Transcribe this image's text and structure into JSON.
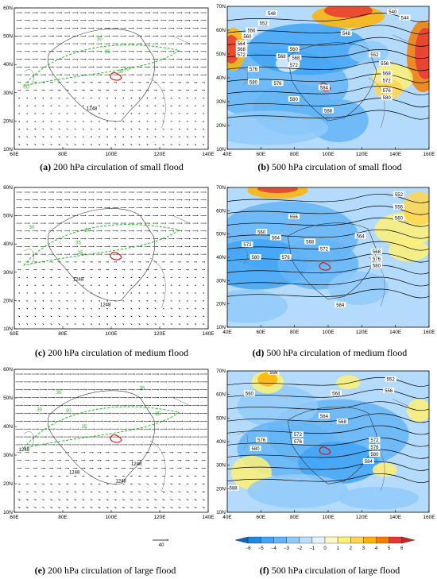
{
  "panels": [
    {
      "id": "a",
      "label": "(a)",
      "caption": "200 hPa circulation of small flood",
      "lats": [
        "60N",
        "50N",
        "40N",
        "30N",
        "20N",
        "10N"
      ],
      "lons": [
        "60E",
        "80E",
        "100E",
        "120E",
        "140E"
      ],
      "contours": [
        "30",
        "35",
        "35",
        "30",
        "30",
        "1248"
      ]
    },
    {
      "id": "b",
      "label": "(b)",
      "caption": "500 hPa circulation of small flood",
      "lats": [
        "70N",
        "60N",
        "50N",
        "40N",
        "30N",
        "20N",
        "10N"
      ],
      "lons": [
        "40E",
        "60E",
        "80E",
        "100E",
        "120E",
        "140E",
        "160E"
      ],
      "contours": [
        "548",
        "552",
        "556",
        "560",
        "564",
        "568",
        "572",
        "576",
        "580",
        "568",
        "572",
        "576",
        "580",
        "584",
        "588",
        "560",
        "568",
        "540",
        "544",
        "548",
        "552",
        "556",
        "568",
        "572",
        "576",
        "580"
      ]
    },
    {
      "id": "c",
      "label": "(c)",
      "caption": "200 hPa circulation of medium flood",
      "lats": [
        "60N",
        "50N",
        "40N",
        "30N",
        "20N",
        "10N"
      ],
      "lons": [
        "60E",
        "80E",
        "100E",
        "120E",
        "140E"
      ],
      "contours": [
        "30",
        "35",
        "35",
        "30",
        "1248",
        "1248"
      ]
    },
    {
      "id": "d",
      "label": "(d)",
      "caption": "500 hPa circulation of medium flood",
      "lats": [
        "70N",
        "60N",
        "50N",
        "40N",
        "30N",
        "20N",
        "10N"
      ],
      "lons": [
        "40E",
        "60E",
        "80E",
        "100E",
        "120E",
        "140E",
        "160E"
      ],
      "contours": [
        "552",
        "556",
        "560",
        "556",
        "560",
        "564",
        "572",
        "580",
        "576",
        "568",
        "572",
        "564",
        "568",
        "576",
        "580",
        "584"
      ]
    },
    {
      "id": "e",
      "label": "(e)",
      "caption": "200 hPa circulation of large flood",
      "lats": [
        "60N",
        "50N",
        "40N",
        "30N",
        "20N",
        "10N"
      ],
      "lons": [
        "60E",
        "80E",
        "100E",
        "120E",
        "140E"
      ],
      "contours": [
        "30",
        "35",
        "30",
        "35",
        "35",
        "30",
        "1248",
        "1248",
        "1248",
        "1248"
      ]
    },
    {
      "id": "f",
      "label": "(f)",
      "caption": "500 hPa circulation of large flood",
      "lats": [
        "70N",
        "60N",
        "50N",
        "40N",
        "30N",
        "20N",
        "10N"
      ],
      "lons": [
        "40E",
        "60E",
        "80E",
        "100E",
        "120E",
        "140E",
        "160E"
      ],
      "contours": [
        "556",
        "552",
        "556",
        "560",
        "560",
        "564",
        "568",
        "572",
        "576",
        "576",
        "580",
        "572",
        "576",
        "580",
        "584",
        "588"
      ]
    }
  ],
  "reference_vector": "40",
  "colorbar": {
    "ticks": [
      "−6",
      "−5",
      "−4",
      "−3",
      "−2",
      "−1",
      "0",
      "1",
      "2",
      "3",
      "4",
      "5",
      "6"
    ],
    "colors": [
      "#1565c0",
      "#1e88e5",
      "#42a5f5",
      "#64b5f6",
      "#90caf9",
      "#bbdefb",
      "#e3f2fd",
      "#fff9c4",
      "#fff176",
      "#ffd54f",
      "#ffb300",
      "#f57c00",
      "#e53935",
      "#c62828"
    ]
  },
  "colors": {
    "green": "#22bb22",
    "red": "#dd1111",
    "black": "#000000"
  }
}
